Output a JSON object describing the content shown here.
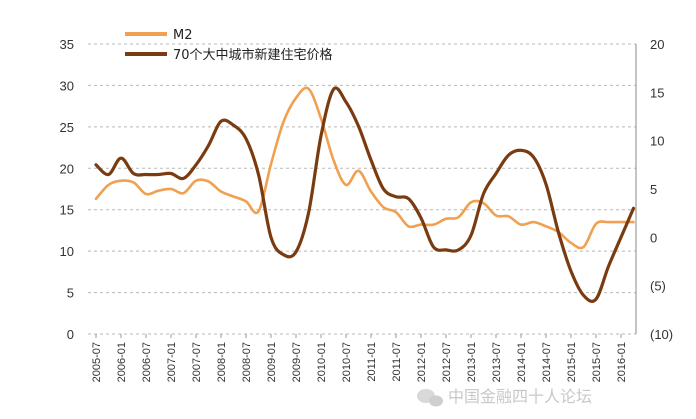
{
  "chart_data": {
    "type": "line",
    "x": [
      "2005-07",
      "2005-10",
      "2006-01",
      "2006-04",
      "2006-07",
      "2006-10",
      "2007-01",
      "2007-04",
      "2007-07",
      "2007-10",
      "2008-01",
      "2008-04",
      "2008-07",
      "2008-10",
      "2009-01",
      "2009-04",
      "2009-07",
      "2009-10",
      "2010-01",
      "2010-04",
      "2010-07",
      "2010-10",
      "2011-01",
      "2011-04",
      "2011-07",
      "2011-10",
      "2012-01",
      "2012-04",
      "2012-07",
      "2012-10",
      "2013-01",
      "2013-04",
      "2013-07",
      "2013-10",
      "2014-01",
      "2014-04",
      "2014-07",
      "2014-10",
      "2015-01",
      "2015-04",
      "2015-07",
      "2015-10",
      "2016-01",
      "2016-04"
    ],
    "x_tick_labels": [
      "2005-07",
      "2006-01",
      "2006-07",
      "2007-01",
      "2007-07",
      "2008-01",
      "2008-07",
      "2009-01",
      "2009-07",
      "2010-01",
      "2010-07",
      "2011-01",
      "2011-07",
      "2012-01",
      "2012-07",
      "2013-01",
      "2013-07",
      "2014-01",
      "2014-07",
      "2015-01",
      "2015-07",
      "2016-01"
    ],
    "left_axis": {
      "ylim": [
        0,
        35
      ],
      "ticks": [
        0,
        5,
        10,
        15,
        20,
        25,
        30,
        35
      ],
      "labels": [
        "0",
        "5",
        "10",
        "15",
        "20",
        "25",
        "30",
        "35"
      ]
    },
    "right_axis": {
      "ylim": [
        -10,
        20
      ],
      "ticks": [
        -10,
        -5,
        0,
        5,
        10,
        15,
        20
      ],
      "labels": [
        "(10)",
        "(5)",
        "0",
        "5",
        "10",
        "15",
        "20"
      ]
    },
    "grid": "horizontal-dashed",
    "legend_position": "top-left",
    "series": [
      {
        "name": "M2",
        "axis": "left",
        "color": "#f0a050",
        "values": [
          16.3,
          18.0,
          18.5,
          18.3,
          16.9,
          17.3,
          17.5,
          17.0,
          18.5,
          18.4,
          17.2,
          16.6,
          16.0,
          14.8,
          20.5,
          25.6,
          28.5,
          29.6,
          26.0,
          21.0,
          18.0,
          19.7,
          17.2,
          15.3,
          14.7,
          13.0,
          13.2,
          13.2,
          13.9,
          14.1,
          15.9,
          15.8,
          14.3,
          14.2,
          13.2,
          13.5,
          13.0,
          12.3,
          11.0,
          10.5,
          13.3,
          13.5,
          13.5,
          13.5
        ]
      },
      {
        "name": "70个大中城市新建住宅价格",
        "axis": "right",
        "color": "#7a3b10",
        "values": [
          7.5,
          6.5,
          8.2,
          6.6,
          6.5,
          6.5,
          6.6,
          6.1,
          7.5,
          9.5,
          12.0,
          11.6,
          10.2,
          6.5,
          0.0,
          -1.8,
          -1.5,
          2.5,
          10.5,
          15.3,
          14.0,
          11.5,
          8.0,
          5.0,
          4.2,
          4.0,
          2.0,
          -1.0,
          -1.3,
          -1.3,
          0.2,
          4.5,
          6.6,
          8.5,
          9.0,
          8.3,
          5.5,
          0.5,
          -3.5,
          -6.0,
          -6.4,
          -3.0,
          0.0,
          3.0
        ]
      }
    ]
  },
  "watermark": {
    "text": "中国金融四十人论坛"
  }
}
